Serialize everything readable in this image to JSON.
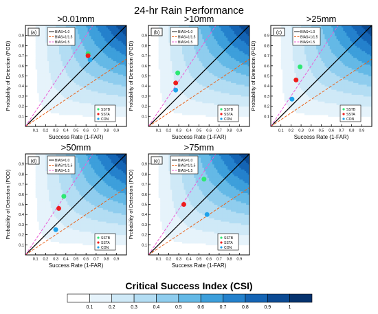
{
  "title": "24-hr Rain Performance",
  "colorbar": {
    "title": "Critical Success Index (CSI)",
    "ticks": [
      "0.1",
      "0.2",
      "0.3",
      "0.4",
      "0.5",
      "0.6",
      "0.7",
      "0.8",
      "0.9",
      "1"
    ],
    "levels": [
      0.1,
      0.2,
      0.3,
      0.4,
      0.5,
      0.6,
      0.7,
      0.8,
      0.9,
      1.0
    ],
    "colors": [
      "#ffffff",
      "#e6f3fb",
      "#cfe9f7",
      "#b3ddf3",
      "#8fcdee",
      "#64b9e6",
      "#3d9fdb",
      "#2481cc",
      "#1464b4",
      "#0b4a93",
      "#06336e"
    ]
  },
  "chart_data": [
    {
      "type": "scatter",
      "panel": "(a)",
      "title": ">0.01mm",
      "xlabel": "Success Rate (1-FAR)",
      "ylabel": "Probability of Detection (POD)",
      "xlim": [
        0,
        1
      ],
      "ylim": [
        0,
        1
      ],
      "xticks": [
        "0.1",
        "0.2",
        "0.3",
        "0.4",
        "0.5",
        "0.6",
        "0.7",
        "0.8",
        "0.9"
      ],
      "yticks": [
        "0.1",
        "0.2",
        "0.3",
        "0.4",
        "0.5",
        "0.6",
        "0.7",
        "0.8",
        "0.9"
      ],
      "bias_legend": [
        "BIAS=1.0",
        "BIAS=1/1.5",
        "BIAS=1.5"
      ],
      "series": [
        {
          "name": "SSTB",
          "color": "#2ee873",
          "x": 0.62,
          "y": 0.72
        },
        {
          "name": "SSTA",
          "color": "#ee1c1c",
          "x": 0.62,
          "y": 0.7
        },
        {
          "name": "CON",
          "color": "#1fa2ea",
          "x": 0.64,
          "y": 0.66
        }
      ]
    },
    {
      "type": "scatter",
      "panel": "(b)",
      "title": ">10mm",
      "xlabel": "Success Rate (1-FAR)",
      "ylabel": "Probability of Detection (POD)",
      "xlim": [
        0,
        1
      ],
      "ylim": [
        0,
        1
      ],
      "xticks": [
        "0.1",
        "0.2",
        "0.3",
        "0.4",
        "0.5",
        "0.6",
        "0.7",
        "0.8",
        "0.9"
      ],
      "yticks": [
        "0.1",
        "0.2",
        "0.3",
        "0.4",
        "0.5",
        "0.6",
        "0.7",
        "0.8",
        "0.9"
      ],
      "bias_legend": [
        "BIAS=1.0",
        "BIAS=1/1.5",
        "BIAS=1.5"
      ],
      "series": [
        {
          "name": "SSTB",
          "color": "#2ee873",
          "x": 0.29,
          "y": 0.53
        },
        {
          "name": "SSTA",
          "color": "#ee1c1c",
          "x": 0.27,
          "y": 0.43
        },
        {
          "name": "CON",
          "color": "#1fa2ea",
          "x": 0.27,
          "y": 0.36
        }
      ]
    },
    {
      "type": "scatter",
      "panel": "(c)",
      "title": ">25mm",
      "xlabel": "Success Rate (1-FAR)",
      "ylabel": "Probability of Detection (POD)",
      "xlim": [
        0,
        1
      ],
      "ylim": [
        0,
        1
      ],
      "xticks": [
        "0.1",
        "0.2",
        "0.3",
        "0.4",
        "0.5",
        "0.6",
        "0.7",
        "0.8",
        "0.9"
      ],
      "yticks": [
        "0.1",
        "0.2",
        "0.3",
        "0.4",
        "0.5",
        "0.6",
        "0.7",
        "0.8",
        "0.9"
      ],
      "bias_legend": [
        "BIAS=1.0",
        "BIAS=1/1.5",
        "BIAS=1.5"
      ],
      "series": [
        {
          "name": "SSTB",
          "color": "#2ee873",
          "x": 0.29,
          "y": 0.59
        },
        {
          "name": "SSTA",
          "color": "#ee1c1c",
          "x": 0.25,
          "y": 0.46
        },
        {
          "name": "CON",
          "color": "#1fa2ea",
          "x": 0.21,
          "y": 0.27
        }
      ]
    },
    {
      "type": "scatter",
      "panel": "(d)",
      "title": ">50mm",
      "xlabel": "Success Rate (1-FAR)",
      "ylabel": "Probability of Detection (POD)",
      "xlim": [
        0,
        1
      ],
      "ylim": [
        0,
        1
      ],
      "xticks": [
        "0.1",
        "0.2",
        "0.3",
        "0.4",
        "0.5",
        "0.6",
        "0.7",
        "0.8",
        "0.9"
      ],
      "yticks": [
        "0.1",
        "0.2",
        "0.3",
        "0.4",
        "0.5",
        "0.6",
        "0.7",
        "0.8",
        "0.9"
      ],
      "bias_legend": [
        "BIAS=1.0",
        "BIAS=1/1.5",
        "BIAS=1.5"
      ],
      "series": [
        {
          "name": "SSTB",
          "color": "#2ee873",
          "x": 0.38,
          "y": 0.58
        },
        {
          "name": "SSTA",
          "color": "#ee1c1c",
          "x": 0.33,
          "y": 0.46
        },
        {
          "name": "CON",
          "color": "#1fa2ea",
          "x": 0.3,
          "y": 0.25
        }
      ]
    },
    {
      "type": "scatter",
      "panel": "(e)",
      "title": ">75mm",
      "xlabel": "Success Rate (1-FAR)",
      "ylabel": "Probability of Detection (POD)",
      "xlim": [
        0,
        1
      ],
      "ylim": [
        0,
        1
      ],
      "xticks": [
        "0.1",
        "0.2",
        "0.3",
        "0.4",
        "0.5",
        "0.6",
        "0.7",
        "0.8",
        "0.9"
      ],
      "yticks": [
        "0.1",
        "0.2",
        "0.3",
        "0.4",
        "0.5",
        "0.6",
        "0.7",
        "0.8",
        "0.9"
      ],
      "bias_legend": [
        "BIAS=1.0",
        "BIAS=1/1.5",
        "BIAS=1.5"
      ],
      "series": [
        {
          "name": "SSTB",
          "color": "#2ee873",
          "x": 0.55,
          "y": 0.75
        },
        {
          "name": "SSTA",
          "color": "#ee1c1c",
          "x": 0.35,
          "y": 0.5
        },
        {
          "name": "CON",
          "color": "#1fa2ea",
          "x": 0.58,
          "y": 0.4
        }
      ]
    }
  ]
}
